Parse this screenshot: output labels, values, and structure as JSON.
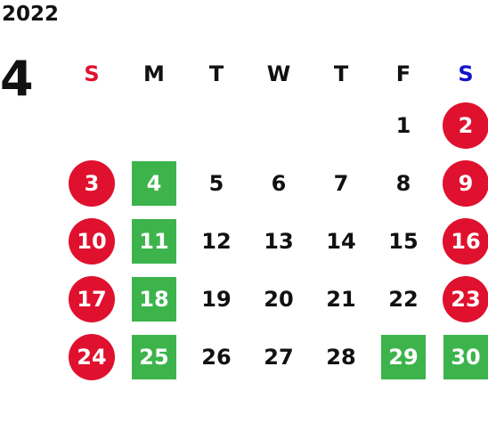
{
  "calendar": {
    "year": "2022",
    "month": "4",
    "weekdays": [
      {
        "label": "S",
        "color": "#e0112e"
      },
      {
        "label": "M",
        "color": "#111111"
      },
      {
        "label": "T",
        "color": "#111111"
      },
      {
        "label": "W",
        "color": "#111111"
      },
      {
        "label": "T",
        "color": "#111111"
      },
      {
        "label": "F",
        "color": "#111111"
      },
      {
        "label": "S",
        "color": "#1414c8"
      }
    ],
    "weeks": [
      [
        null,
        null,
        null,
        null,
        null,
        {
          "day": "1",
          "mark": "none"
        },
        {
          "day": "2",
          "mark": "red-circle"
        }
      ],
      [
        {
          "day": "3",
          "mark": "red-circle"
        },
        {
          "day": "4",
          "mark": "green-square"
        },
        {
          "day": "5",
          "mark": "none"
        },
        {
          "day": "6",
          "mark": "none"
        },
        {
          "day": "7",
          "mark": "none"
        },
        {
          "day": "8",
          "mark": "none"
        },
        {
          "day": "9",
          "mark": "red-circle"
        }
      ],
      [
        {
          "day": "10",
          "mark": "red-circle"
        },
        {
          "day": "11",
          "mark": "green-square"
        },
        {
          "day": "12",
          "mark": "none"
        },
        {
          "day": "13",
          "mark": "none"
        },
        {
          "day": "14",
          "mark": "none"
        },
        {
          "day": "15",
          "mark": "none"
        },
        {
          "day": "16",
          "mark": "red-circle"
        }
      ],
      [
        {
          "day": "17",
          "mark": "red-circle"
        },
        {
          "day": "18",
          "mark": "green-square"
        },
        {
          "day": "19",
          "mark": "none"
        },
        {
          "day": "20",
          "mark": "none"
        },
        {
          "day": "21",
          "mark": "none"
        },
        {
          "day": "22",
          "mark": "none"
        },
        {
          "day": "23",
          "mark": "red-circle"
        }
      ],
      [
        {
          "day": "24",
          "mark": "red-circle"
        },
        {
          "day": "25",
          "mark": "green-square"
        },
        {
          "day": "26",
          "mark": "none"
        },
        {
          "day": "27",
          "mark": "none"
        },
        {
          "day": "28",
          "mark": "none"
        },
        {
          "day": "29",
          "mark": "green-square"
        },
        {
          "day": "30",
          "mark": "green-square"
        }
      ]
    ],
    "colors": {
      "holiday_red": "#e0112e",
      "closed_green": "#3cb44b",
      "sunday_label": "#e0112e",
      "saturday_label": "#1414c8"
    }
  }
}
